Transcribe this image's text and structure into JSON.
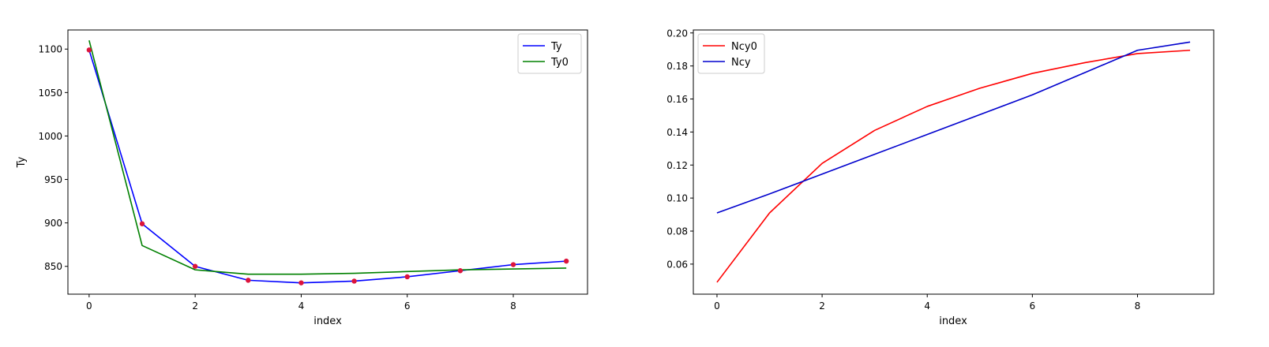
{
  "chart_data": [
    {
      "type": "line",
      "xlabel": "index",
      "ylabel": "Ty",
      "xlim": [
        -0.4,
        9.4
      ],
      "ylim": [
        818,
        1122
      ],
      "xticks": [
        0,
        2,
        4,
        6,
        8
      ],
      "yticks": [
        850,
        900,
        950,
        1000,
        1050,
        1100
      ],
      "ytick_labels": [
        "850",
        "900",
        "950",
        "1000",
        "1050",
        "1100"
      ],
      "grid": false,
      "legend_position": "upper right",
      "x": [
        0,
        1,
        2,
        3,
        4,
        5,
        6,
        7,
        8,
        9
      ],
      "series": [
        {
          "name": "Ty",
          "color": "#0000ff",
          "values": [
            1099,
            899,
            850,
            834,
            831,
            833,
            838,
            845,
            852,
            856
          ]
        },
        {
          "name": "Ty0",
          "color": "#008000",
          "values": [
            1110,
            874,
            846,
            841,
            841,
            842,
            844,
            846,
            847,
            848
          ]
        }
      ],
      "scatter": {
        "color": "#dc143c",
        "values": [
          1099,
          899,
          850,
          834,
          831,
          833,
          838,
          845,
          852,
          856
        ]
      }
    },
    {
      "type": "line",
      "xlabel": "index",
      "ylabel": "",
      "xlim": [
        -0.45,
        9.45
      ],
      "ylim": [
        0.0418,
        0.2018
      ],
      "xticks": [
        0,
        2,
        4,
        6,
        8
      ],
      "yticks": [
        0.06,
        0.08,
        0.1,
        0.12,
        0.14,
        0.16,
        0.18,
        0.2
      ],
      "ytick_labels": [
        "0.06",
        "0.08",
        "0.10",
        "0.12",
        "0.14",
        "0.16",
        "0.18",
        "0.20"
      ],
      "grid": false,
      "legend_position": "upper left",
      "x": [
        0,
        1,
        2,
        3,
        4,
        5,
        6,
        7,
        8,
        9
      ],
      "series": [
        {
          "name": "Ncy0",
          "color": "#ff0000",
          "values": [
            0.049,
            0.091,
            0.121,
            0.141,
            0.1555,
            0.1665,
            0.1755,
            0.182,
            0.1875,
            0.1895
          ]
        },
        {
          "name": "Ncy",
          "color": "#0000cd",
          "values": [
            0.091,
            0.1025,
            0.1145,
            0.1265,
            0.1385,
            0.1505,
            0.1625,
            0.176,
            0.1895,
            0.1945
          ]
        }
      ]
    }
  ]
}
